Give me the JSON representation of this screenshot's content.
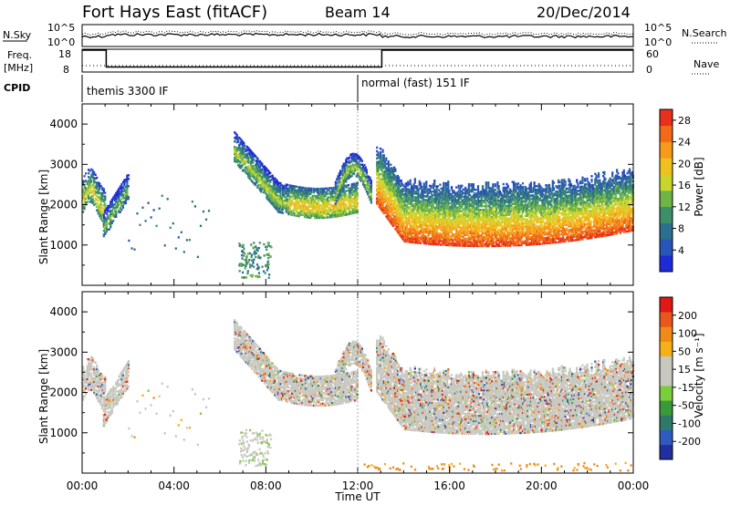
{
  "header": {
    "title": "Fort Hays East (fitACF)",
    "beam": "Beam 14",
    "date": "20/Dec/2014"
  },
  "status_panels": {
    "nsky_label": "N.Sky",
    "nsearch_label": "N.Search",
    "freq_label_1": "Freq.",
    "freq_label_2": "[MHz]",
    "nave_label": "Nave",
    "cpid_label": "CPID",
    "noise_ticks": [
      "10^5",
      "10^0"
    ],
    "noise_ticks_right": [
      "10^5",
      "10^0"
    ],
    "freq_ticks": [
      "18",
      "8"
    ],
    "nave_ticks": [
      "60",
      "0"
    ],
    "cpid_segments": [
      {
        "start_hour": 0,
        "end_hour": 12,
        "label": "themis 3300 IF"
      },
      {
        "start_hour": 12,
        "end_hour": 24,
        "label": "normal (fast) 151 IF"
      }
    ],
    "freq_profile_hours": [
      0,
      1.05,
      1.05,
      13.05,
      13.05,
      24
    ],
    "freq_profile_mhz": [
      17.6,
      17.6,
      10.2,
      10.2,
      17.6,
      17.6
    ]
  },
  "axes": {
    "ylabel": "Slant Range [km]",
    "xlabel": "Time UT",
    "y_ticks": [
      "1000",
      "2000",
      "3000",
      "4000"
    ],
    "x_ticks": [
      "00:00",
      "04:00",
      "08:00",
      "12:00",
      "16:00",
      "20:00",
      "00:00"
    ]
  },
  "colorbars": {
    "power": {
      "label": "Power [dB]",
      "ticks": [
        "4",
        "8",
        "12",
        "16",
        "20",
        "24",
        "28"
      ],
      "colors": [
        "#1f2bd8",
        "#2a55b8",
        "#2e6e8e",
        "#3d8f6a",
        "#6fb446",
        "#c9d52c",
        "#f0c020",
        "#f59a1a",
        "#f06a18",
        "#e8301a"
      ]
    },
    "velocity": {
      "label": "Velocity [m s⁻¹]",
      "ticks": [
        "200",
        "100",
        "50",
        "15",
        "-15",
        "-50",
        "-100",
        "-200"
      ],
      "colors": [
        "#2030a0",
        "#2f5bc0",
        "#2e7a6a",
        "#3a9a3a",
        "#7ccd3e",
        "#c8c8c0",
        "#c8c8c0",
        "#f5b01a",
        "#f08a18",
        "#e8581a",
        "#e01818"
      ]
    }
  },
  "chart_data": [
    {
      "type": "heatmap",
      "panel": "power",
      "xlabel": "Time UT",
      "ylabel": "Slant Range [km]",
      "xlim_hours": [
        0,
        24
      ],
      "ylim_km": [
        0,
        4500
      ],
      "colorbar_label": "Power [dB]",
      "colorbar_range": [
        0,
        30
      ],
      "regions": [
        {
          "hours": [
            0.0,
            0.5,
            1.0
          ],
          "range_km": [
            1900,
            2800
          ],
          "power_db": 18
        },
        {
          "hours": [
            0.8,
            1.5,
            2.0
          ],
          "range_km": [
            1200,
            2400
          ],
          "power_db": 14
        },
        {
          "hours": [
            6.5,
            7.5,
            8.5
          ],
          "range_km": [
            1900,
            3400
          ],
          "power_db": 16
        },
        {
          "hours": [
            8.5,
            10.5,
            12.0
          ],
          "range_km": [
            1800,
            2300
          ],
          "power_db": 20
        },
        {
          "hours": [
            13.0,
            16.0,
            20.0,
            23.9
          ],
          "range_km": [
            1000,
            1700
          ],
          "power_db": 28
        }
      ]
    },
    {
      "type": "heatmap",
      "panel": "velocity",
      "xlabel": "Time UT",
      "ylabel": "Slant Range [km]",
      "xlim_hours": [
        0,
        24
      ],
      "ylim_km": [
        0,
        4500
      ],
      "colorbar_label": "Velocity [m s⁻¹]",
      "colorbar_range": [
        -200,
        200
      ],
      "regions": [
        {
          "hours": [
            0.0,
            1.0
          ],
          "range_km": [
            1800,
            2800
          ],
          "velocity_ms": 0
        },
        {
          "hours": [
            6.5,
            8.5
          ],
          "range_km": [
            1900,
            3300
          ],
          "velocity_ms": 0
        },
        {
          "hours": [
            12.8,
            13.5
          ],
          "range_km": [
            1500,
            3000
          ],
          "velocity_ms": 40
        },
        {
          "hours": [
            13.5,
            23.9
          ],
          "range_km": [
            1000,
            2500
          ],
          "velocity_ms": 0
        }
      ]
    }
  ]
}
